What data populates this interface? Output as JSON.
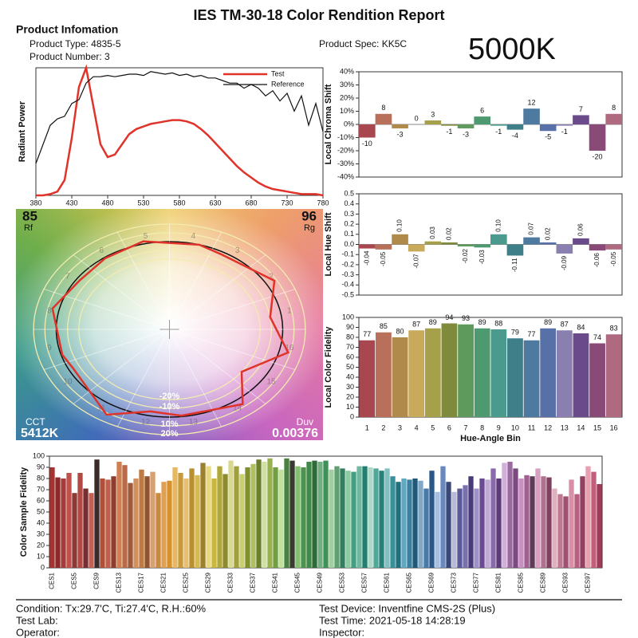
{
  "header": {
    "title": "IES TM-30-18 Color Rendition Report",
    "section": "Product Infomation",
    "product_type": "Product Type: 4835-5",
    "product_number": "Product Number: 3",
    "product_spec": "Product Spec: KK5C",
    "cct_badge": "5000K"
  },
  "footer": {
    "condition": "Condition: Tx:29.7'C, Ti:27.4'C, R.H.:60%",
    "test_lab": "Test Lab:",
    "operator": "Operator:",
    "test_device": "Test Device: Inventfine CMS-2S (Plus)",
    "test_time": "Test Time: 2021-05-18 14:28:19",
    "inspector": "Inspector:"
  },
  "chart_data": [
    {
      "type": "line",
      "y_label": "Radiant Power",
      "x": [
        380,
        390,
        400,
        410,
        420,
        430,
        440,
        450,
        460,
        470,
        480,
        490,
        500,
        510,
        520,
        530,
        540,
        550,
        560,
        570,
        580,
        590,
        600,
        610,
        620,
        630,
        640,
        650,
        660,
        670,
        680,
        690,
        700,
        710,
        720,
        730,
        740,
        750,
        760,
        770,
        780
      ],
      "series": [
        {
          "name": "Test",
          "color": "#e0332a",
          "values": [
            0,
            0,
            0.01,
            0.03,
            0.12,
            0.45,
            0.85,
            1.0,
            0.7,
            0.4,
            0.3,
            0.32,
            0.4,
            0.48,
            0.52,
            0.54,
            0.56,
            0.57,
            0.58,
            0.59,
            0.59,
            0.58,
            0.56,
            0.52,
            0.47,
            0.41,
            0.35,
            0.29,
            0.23,
            0.18,
            0.14,
            0.1,
            0.07,
            0.05,
            0.04,
            0.03,
            0.02,
            0.01,
            0.01,
            0.01,
            0
          ]
        },
        {
          "name": "Reference",
          "color": "#111111",
          "values": [
            0.25,
            0.4,
            0.55,
            0.6,
            0.62,
            0.72,
            0.75,
            0.88,
            0.93,
            0.93,
            0.94,
            0.93,
            0.94,
            0.95,
            0.95,
            0.94,
            0.97,
            0.96,
            0.95,
            0.96,
            0.94,
            0.95,
            0.93,
            0.94,
            0.92,
            0.92,
            0.9,
            0.88,
            0.88,
            0.84,
            0.87,
            0.84,
            0.78,
            0.82,
            0.74,
            0.8,
            0.66,
            0.78,
            0.55,
            0.72,
            0.5
          ]
        }
      ],
      "xlim": [
        380,
        780
      ],
      "xticks": [
        380,
        430,
        480,
        530,
        580,
        630,
        680,
        730,
        780
      ],
      "ylim": [
        0,
        1
      ],
      "legend": "upper right"
    },
    {
      "type": "vector",
      "rf_label": "Rf",
      "rf": 85,
      "rg_label": "Rg",
      "rg": 96,
      "cct_label": "CCT",
      "cct": "5412K",
      "duv_label": "Duv",
      "duv": 0.00376,
      "rings": [
        {
          "value": -20,
          "label": "-20%"
        },
        {
          "value": -10,
          "label": "-10%"
        },
        {
          "value": 10,
          "label": "10%"
        },
        {
          "value": 20,
          "label": "20%"
        }
      ],
      "test_color": "#e0332a",
      "reference_color": "#111111"
    },
    {
      "type": "bar",
      "y_label": "Local Chroma Shift",
      "data_labels": true,
      "values": [
        -10,
        8,
        -3,
        0,
        3,
        -1,
        -3,
        6,
        -1,
        -4,
        12,
        -5,
        -1,
        7,
        -20,
        8
      ],
      "colors": [
        "#a8474f",
        "#b8705a",
        "#b08a4a",
        "#c9a95a",
        "#a6a04a",
        "#7f8a3c",
        "#5e9a5c",
        "#4e9a70",
        "#4a9a8e",
        "#3f7f8a",
        "#4f7aa0",
        "#5870a8",
        "#8a80b0",
        "#6a4a8a",
        "#8a4a78",
        "#b06a80"
      ],
      "ylim": [
        -40,
        40
      ],
      "yticks": [
        {
          "value": -40,
          "label": "-40%"
        },
        {
          "value": -30,
          "label": "-30%"
        },
        {
          "value": -20,
          "label": "-20%"
        },
        {
          "value": -10,
          "label": "-10%"
        },
        {
          "value": 0,
          "label": "0%"
        },
        {
          "value": 10,
          "label": "10%"
        },
        {
          "value": 20,
          "label": "20%"
        },
        {
          "value": 30,
          "label": "30%"
        },
        {
          "value": 40,
          "label": "40%"
        }
      ]
    },
    {
      "type": "bar",
      "y_label": "Local Hue Shift",
      "data_labels": true,
      "values": [
        -0.04,
        -0.05,
        0.1,
        -0.07,
        0.03,
        0.02,
        -0.02,
        -0.03,
        0.1,
        -0.11,
        0.07,
        0.02,
        -0.09,
        0.06,
        -0.06,
        -0.05
      ],
      "value_labels": [
        "-0.04",
        "-0.05",
        "0.10",
        "-0.07",
        "0.03",
        "0.02",
        "-0.02",
        "-0.03",
        "0.10",
        "-0.11",
        "0.07",
        "0.02",
        "-0.09",
        "0.06",
        "-0.06",
        "-0.05"
      ],
      "colors": [
        "#a8474f",
        "#b8705a",
        "#b08a4a",
        "#c9a95a",
        "#a6a04a",
        "#7f8a3c",
        "#5e9a5c",
        "#4e9a70",
        "#4a9a8e",
        "#3f7f8a",
        "#4f7aa0",
        "#5870a8",
        "#8a80b0",
        "#6a4a8a",
        "#8a4a78",
        "#b06a80"
      ],
      "ylim": [
        -0.5,
        0.5
      ],
      "yticks": [
        -0.5,
        -0.4,
        -0.3,
        -0.2,
        -0.1,
        {
          "value": 0,
          "label": "0.0"
        },
        0.1,
        0.2,
        0.3,
        0.4,
        0.5
      ]
    },
    {
      "type": "bar",
      "y_label": "Local Color Fidelity",
      "x_label": "Hue-Angle Bin",
      "data_labels": true,
      "categories": [
        "1",
        "2",
        "3",
        "4",
        "5",
        "6",
        "7",
        "8",
        "9",
        "10",
        "11",
        "12",
        "13",
        "14",
        "15",
        "16"
      ],
      "values": [
        77,
        85,
        80,
        87,
        89,
        94,
        93,
        89,
        88,
        79,
        77,
        89,
        87,
        84,
        74,
        83
      ],
      "colors": [
        "#a8474f",
        "#b8705a",
        "#b08a4a",
        "#c9a95a",
        "#a6a04a",
        "#7f8a3c",
        "#5e9a5c",
        "#4e9a70",
        "#4a9a8e",
        "#3f7f8a",
        "#4f7aa0",
        "#5870a8",
        "#8a80b0",
        "#6a4a8a",
        "#8a4a78",
        "#b06a80"
      ],
      "ylim": [
        0,
        100
      ],
      "yticks": [
        0,
        10,
        20,
        30,
        40,
        50,
        60,
        70,
        80,
        90,
        100
      ]
    },
    {
      "type": "bar",
      "y_label": "Color Sample Fidelity",
      "data_labels": false,
      "categories": [
        "CES1",
        null,
        null,
        null,
        "CES5",
        null,
        null,
        null,
        "CES9",
        null,
        null,
        null,
        "CES13",
        null,
        null,
        null,
        "CES17",
        null,
        null,
        null,
        "CES21",
        null,
        null,
        null,
        "CES25",
        null,
        null,
        null,
        "CES29",
        null,
        null,
        null,
        "CES33",
        null,
        null,
        null,
        "CES37",
        null,
        null,
        null,
        "CES41",
        null,
        null,
        null,
        "CES45",
        null,
        null,
        null,
        "CES49",
        null,
        null,
        null,
        "CES53",
        null,
        null,
        null,
        "CES57",
        null,
        null,
        null,
        "CES61",
        null,
        null,
        null,
        "CES65",
        null,
        null,
        null,
        "CES69",
        null,
        null,
        null,
        "CES73",
        null,
        null,
        null,
        "CES77",
        null,
        null,
        null,
        "CES81",
        null,
        null,
        null,
        "CES85",
        null,
        null,
        null,
        "CES89",
        null,
        null,
        null,
        "CES93",
        null,
        null,
        null,
        "CES97",
        null,
        null
      ],
      "values": [
        90,
        81,
        80,
        85,
        67,
        85,
        71,
        67,
        97,
        80,
        79,
        82,
        95,
        92,
        76,
        80,
        88,
        82,
        86,
        67,
        77,
        78,
        90,
        85,
        80,
        89,
        83,
        94,
        91,
        80,
        91,
        84,
        96,
        91,
        84,
        90,
        93,
        97,
        95,
        98,
        90,
        88,
        98,
        96,
        91,
        90,
        95,
        96,
        95,
        96,
        88,
        91,
        89,
        87,
        86,
        91,
        91,
        90,
        89,
        87,
        89,
        82,
        77,
        80,
        79,
        80,
        78,
        71,
        87,
        68,
        91,
        77,
        68,
        71,
        74,
        82,
        71,
        80,
        79,
        89,
        80,
        94,
        95,
        89,
        80,
        83,
        82,
        89,
        82,
        81,
        71,
        66,
        64,
        79,
        66,
        82,
        91,
        86,
        75
      ],
      "colors": [
        "#a5332f",
        "#8b2a2a",
        "#a53c3a",
        "#c0504a",
        "#8c3a35",
        "#b24a44",
        "#7a2c2e",
        "#c26055",
        "#3a2a2a",
        "#b0503a",
        "#c0604a",
        "#8e3e2e",
        "#d08050",
        "#b86a4a",
        "#a05a3a",
        "#d09060",
        "#c07a40",
        "#8e5530",
        "#d8a070",
        "#c88a40",
        "#e0a050",
        "#d6902e",
        "#e8b860",
        "#c89a40",
        "#e6c070",
        "#b89030",
        "#d8b850",
        "#9a8030",
        "#e8d880",
        "#c8b840",
        "#b0a838",
        "#8e8a30",
        "#d8d890",
        "#a0a040",
        "#c8d070",
        "#809030",
        "#b0c060",
        "#6a8030",
        "#d0e0a0",
        "#98b050",
        "#70a040",
        "#c0e0a0",
        "#4a8040",
        "#3a3a30",
        "#80c070",
        "#509050",
        "#408a48",
        "#306a3a",
        "#70b080",
        "#40905a",
        "#a0d0a0",
        "#60a070",
        "#308060",
        "#90c8a0",
        "#40a080",
        "#70b8a0",
        "#208070",
        "#b0d8c8",
        "#50a898",
        "#2a8078",
        "#80c0c0",
        "#3a9098",
        "#207080",
        "#60a8c0",
        "#3a80a0",
        "#205878",
        "#80a8c8",
        "#4a78a8",
        "#2a5888",
        "#a8c0e0",
        "#6a88c0",
        "#3a4878",
        "#b8b8d8",
        "#5a5a98",
        "#7a70b0",
        "#4a3a78",
        "#a090c8",
        "#6a4a90",
        "#c0a8d8",
        "#8a6aa8",
        "#5a3a78",
        "#d0b0d8",
        "#9a6aa0",
        "#7a4a80",
        "#c890c0",
        "#a06090",
        "#603a58",
        "#d8a0c0",
        "#b07090",
        "#804060",
        "#e0b0c0",
        "#c07890",
        "#a05070",
        "#d890a8",
        "#b86080",
        "#904060",
        "#e8a0b0",
        "#c0607a",
        "#a03a58"
      ],
      "ylim": [
        0,
        100
      ],
      "yticks": [
        0,
        10,
        20,
        30,
        40,
        50,
        60,
        70,
        80,
        90,
        100
      ]
    }
  ]
}
